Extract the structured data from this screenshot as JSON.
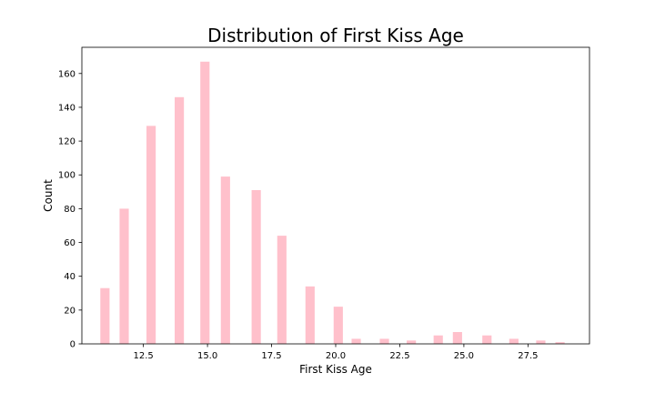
{
  "chart_data": {
    "type": "bar",
    "title": "Distribution of First Kiss Age",
    "xlabel": "First Kiss Age",
    "ylabel": "Count",
    "xlim": [
      10.1,
      29.9
    ],
    "ylim": [
      0,
      175.5
    ],
    "bar_color": "#ffc0cb",
    "x_ticks": [
      12.5,
      15.0,
      17.5,
      20.0,
      22.5,
      25.0,
      27.5
    ],
    "x_tick_labels": [
      "12.5",
      "15.0",
      "17.5",
      "20.0",
      "22.5",
      "25.0",
      "27.5"
    ],
    "y_ticks": [
      0,
      20,
      40,
      60,
      80,
      100,
      120,
      140,
      160
    ],
    "y_tick_labels": [
      "0",
      "20",
      "40",
      "60",
      "80",
      "100",
      "120",
      "140",
      "160"
    ],
    "grid": false,
    "x": [
      11.0,
      11.75,
      12.8,
      13.9,
      14.9,
      15.7,
      16.9,
      17.9,
      19.0,
      20.1,
      20.8,
      21.9,
      22.95,
      24.0,
      24.75,
      25.9,
      26.95,
      28.0,
      28.75
    ],
    "values": [
      33,
      80,
      129,
      146,
      167,
      99,
      91,
      64,
      34,
      22,
      3,
      3,
      2,
      5,
      7,
      5,
      3,
      2,
      1
    ],
    "bar_width": 0.36
  }
}
